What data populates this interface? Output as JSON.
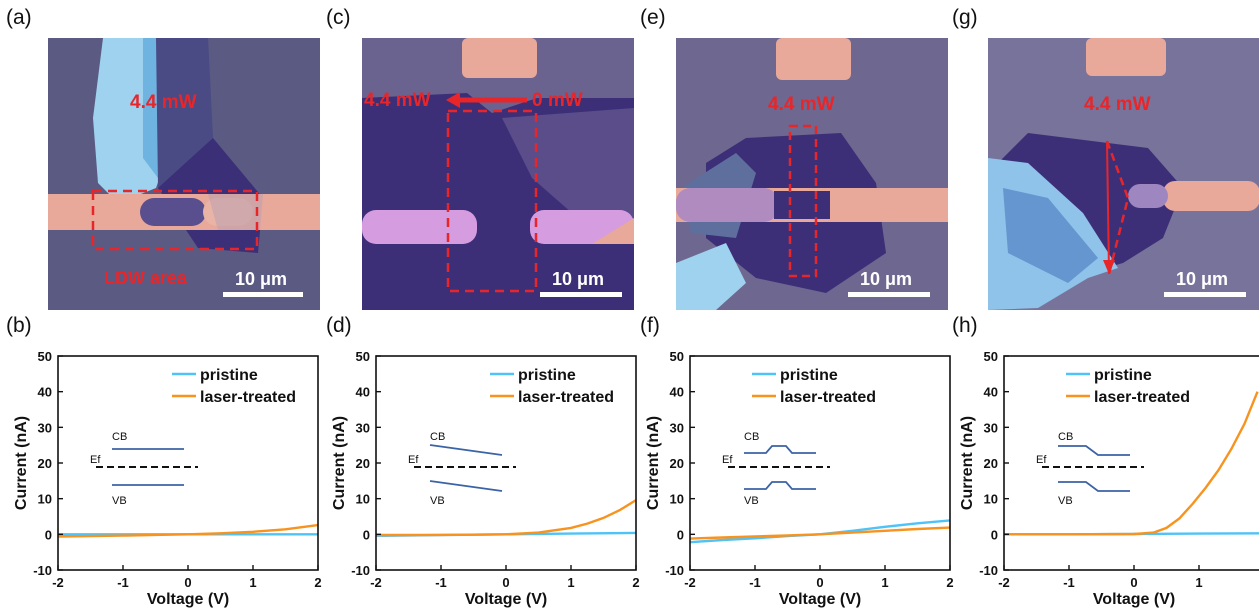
{
  "panels": [
    {
      "label": "(a)",
      "power": "4.4 mW",
      "power_end": "",
      "area_label": "LDW area",
      "scale": "10 μm"
    },
    {
      "label": "(c)",
      "power": "4.4 mW",
      "power_end": "0 mW",
      "area_label": "",
      "scale": "10 μm"
    },
    {
      "label": "(e)",
      "power": "4.4 mW",
      "power_end": "",
      "area_label": "",
      "scale": "10 μm"
    },
    {
      "label": "(g)",
      "power": "4.4 mW",
      "power_end": "",
      "area_label": "",
      "scale": "10 μm"
    }
  ],
  "bottom_labels": [
    "(b)",
    "(d)",
    "(f)",
    "(h)"
  ],
  "band_labels": {
    "cb": "CB",
    "vb": "VB",
    "ef": "Ef"
  },
  "colors": {
    "pristine": "#4fc3f7",
    "laser": "#f7931e",
    "band": "#3b63a6",
    "red": "#e8262a"
  },
  "chart_data": [
    {
      "type": "line",
      "panel": "(b)",
      "xlabel": "Voltage (V)",
      "ylabel": "Current (nA)",
      "xlim": [
        -2,
        2
      ],
      "ylim": [
        -10,
        50
      ],
      "xticks": [
        -2,
        -1,
        0,
        1,
        2
      ],
      "yticks": [
        -10,
        0,
        10,
        20,
        30,
        40,
        50
      ],
      "legend_position": "top-right",
      "band_shape": "flat",
      "series": [
        {
          "name": "pristine",
          "x": [
            -2,
            -1,
            0,
            1,
            2
          ],
          "y": [
            0,
            0,
            0,
            0,
            0
          ]
        },
        {
          "name": "laser-treated",
          "x": [
            -2,
            -1.5,
            -1,
            -0.5,
            0,
            0.5,
            1,
            1.5,
            2
          ],
          "y": [
            -0.6,
            -0.5,
            -0.35,
            -0.15,
            0,
            0.3,
            0.7,
            1.4,
            2.6
          ]
        }
      ]
    },
    {
      "type": "line",
      "panel": "(d)",
      "xlabel": "Voltage (V)",
      "ylabel": "Current (nA)",
      "xlim": [
        -2,
        2
      ],
      "ylim": [
        -10,
        50
      ],
      "xticks": [
        -2,
        -1,
        0,
        1,
        2
      ],
      "yticks": [
        -10,
        0,
        10,
        20,
        30,
        40,
        50
      ],
      "legend_position": "top-right",
      "band_shape": "tilted",
      "series": [
        {
          "name": "pristine",
          "x": [
            -2,
            -1,
            0,
            1,
            2
          ],
          "y": [
            -0.4,
            -0.2,
            0,
            0.2,
            0.4
          ]
        },
        {
          "name": "laser-treated",
          "x": [
            -2,
            -1.5,
            -1,
            -0.5,
            0,
            0.5,
            1,
            1.25,
            1.5,
            1.75,
            2
          ],
          "y": [
            -0.2,
            -0.2,
            -0.15,
            -0.1,
            0,
            0.5,
            1.8,
            3,
            4.6,
            6.8,
            9.6
          ]
        }
      ]
    },
    {
      "type": "line",
      "panel": "(f)",
      "xlabel": "Voltage (V)",
      "ylabel": "Current (nA)",
      "xlim": [
        -2,
        2
      ],
      "ylim": [
        -10,
        50
      ],
      "xticks": [
        -2,
        -1,
        0,
        1,
        2
      ],
      "yticks": [
        -10,
        0,
        10,
        20,
        30,
        40,
        50
      ],
      "legend_position": "top-center",
      "band_shape": "bump",
      "series": [
        {
          "name": "pristine",
          "x": [
            -2,
            -1.5,
            -1,
            -0.5,
            0,
            0.5,
            1,
            1.5,
            2
          ],
          "y": [
            -2.2,
            -1.6,
            -1.1,
            -0.5,
            0,
            1,
            2.1,
            3.1,
            3.9
          ]
        },
        {
          "name": "laser-treated",
          "x": [
            -2,
            -1.5,
            -1,
            -0.5,
            0,
            0.5,
            1,
            1.5,
            2
          ],
          "y": [
            -1.2,
            -0.9,
            -0.6,
            -0.3,
            0,
            0.5,
            1.0,
            1.5,
            1.9
          ]
        }
      ]
    },
    {
      "type": "line",
      "panel": "(h)",
      "xlabel": "Voltage (V)",
      "ylabel": "Current (nA)",
      "xlim": [
        -2,
        2
      ],
      "ylim": [
        -10,
        50
      ],
      "xticks": [
        -2,
        -1,
        0,
        1,
        2
      ],
      "yticks": [
        -10,
        0,
        10,
        20,
        30,
        40,
        50
      ],
      "legend_position": "top-center",
      "band_shape": "step",
      "series": [
        {
          "name": "pristine",
          "x": [
            -2,
            -1,
            0,
            1,
            2
          ],
          "y": [
            0,
            0,
            0.1,
            0.2,
            0.3
          ]
        },
        {
          "name": "laser-treated",
          "x": [
            -2,
            -1,
            0,
            0.3,
            0.5,
            0.7,
            0.9,
            1.1,
            1.3,
            1.5,
            1.7,
            1.9
          ],
          "y": [
            0,
            0,
            0.1,
            0.5,
            1.8,
            4.5,
            8.5,
            13,
            18,
            24,
            31,
            40
          ]
        }
      ]
    }
  ]
}
